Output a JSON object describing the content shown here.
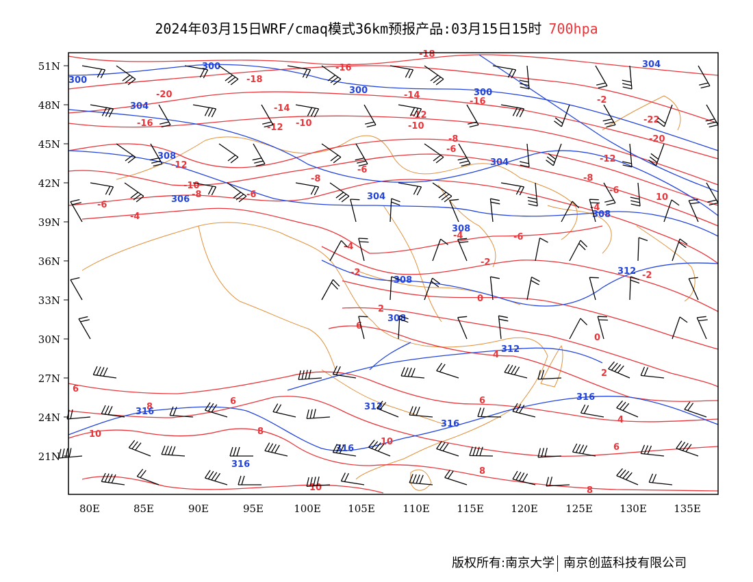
{
  "title": {
    "main": "2024年03月15日WRF/cmaq模式36km预报产品:03月15日15时",
    "level": "700hpa"
  },
  "axes": {
    "lat_labels": [
      "51N",
      "48N",
      "45N",
      "42N",
      "39N",
      "36N",
      "33N",
      "30N",
      "27N",
      "24N",
      "21N"
    ],
    "lon_labels": [
      "80E",
      "85E",
      "90E",
      "95E",
      "100E",
      "105E",
      "110E",
      "115E",
      "120E",
      "125E",
      "130E",
      "135E"
    ]
  },
  "contour_labels": {
    "temperature": [
      "-18",
      "-16",
      "-14",
      "-12",
      "-10",
      "-8",
      "-6",
      "-4",
      "-2",
      "0",
      "2",
      "4",
      "6",
      "8",
      "10"
    ],
    "height": [
      "300",
      "304",
      "308",
      "312",
      "316"
    ]
  },
  "colors": {
    "temperature": "#e8353a",
    "height": "#2244dd",
    "boundary": "#e0913a",
    "wind_barb": "#000000"
  },
  "footer": {
    "left": "版权所有:南京大学",
    "right": "南京创蓝科技有限公司"
  }
}
